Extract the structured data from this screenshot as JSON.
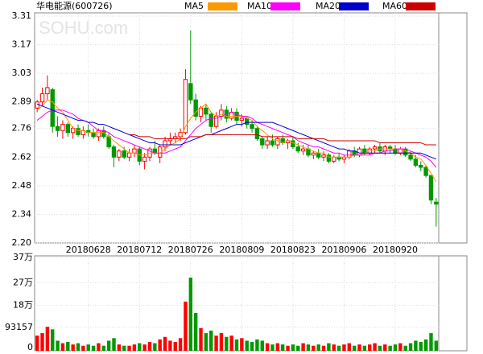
{
  "chart_data": {
    "type": "candlestick",
    "title": "华电能源(600726)",
    "watermark": "SOHU.com",
    "xlim": [
      -0.5,
      78.5
    ],
    "xticks": [
      {
        "value": 10,
        "label": "20180628"
      },
      {
        "value": 20,
        "label": "20180712"
      },
      {
        "value": 30,
        "label": "20180726"
      },
      {
        "value": 40,
        "label": "20180809"
      },
      {
        "value": 50,
        "label": "20180823"
      },
      {
        "value": 60,
        "label": "20180906"
      },
      {
        "value": 70,
        "label": "20180920"
      }
    ],
    "ylim": [
      2.2,
      3.31
    ],
    "yticks": [
      {
        "value": 2.2,
        "label": "2.20"
      },
      2.34,
      2.48,
      2.62,
      2.76,
      2.89,
      3.03,
      3.17,
      3.31
    ],
    "grid": true,
    "up_color": "#ff0000",
    "down_color": "#009900",
    "candles": {
      "open": [
        2.86,
        2.89,
        2.93,
        2.95,
        2.77,
        2.75,
        2.78,
        2.74,
        2.76,
        2.73,
        2.75,
        2.74,
        2.72,
        2.75,
        2.72,
        2.67,
        2.62,
        2.65,
        2.62,
        2.64,
        2.66,
        2.6,
        2.62,
        2.66,
        2.62,
        2.67,
        2.7,
        2.71,
        2.72,
        2.74,
        2.98,
        2.9,
        2.82,
        2.86,
        2.83,
        2.77,
        2.82,
        2.85,
        2.81,
        2.84,
        2.8,
        2.81,
        2.78,
        2.76,
        2.71,
        2.68,
        2.7,
        2.68,
        2.71,
        2.69,
        2.7,
        2.67,
        2.65,
        2.66,
        2.63,
        2.64,
        2.62,
        2.63,
        2.6,
        2.62,
        2.61,
        2.62,
        2.65,
        2.63,
        2.66,
        2.64,
        2.66,
        2.67,
        2.65,
        2.67,
        2.66,
        2.64,
        2.66,
        2.63,
        2.61,
        2.58,
        2.57,
        2.53,
        2.4
      ],
      "high": [
        2.9,
        2.96,
        3.02,
        2.96,
        2.82,
        2.8,
        2.79,
        2.77,
        2.78,
        2.77,
        2.78,
        2.76,
        2.76,
        2.77,
        2.74,
        2.68,
        2.66,
        2.67,
        2.66,
        2.68,
        2.67,
        2.64,
        2.67,
        2.7,
        2.68,
        2.72,
        2.74,
        2.74,
        2.76,
        3.05,
        3.24,
        2.93,
        2.87,
        2.88,
        2.84,
        2.84,
        2.88,
        2.87,
        2.86,
        2.86,
        2.83,
        2.82,
        2.8,
        2.77,
        2.72,
        2.72,
        2.73,
        2.72,
        2.73,
        2.71,
        2.72,
        2.69,
        2.68,
        2.68,
        2.65,
        2.66,
        2.65,
        2.64,
        2.63,
        2.64,
        2.63,
        2.66,
        2.67,
        2.67,
        2.68,
        2.67,
        2.68,
        2.69,
        2.68,
        2.68,
        2.68,
        2.67,
        2.67,
        2.65,
        2.63,
        2.6,
        2.58,
        2.53,
        2.42
      ],
      "low": [
        2.84,
        2.87,
        2.9,
        2.74,
        2.72,
        2.71,
        2.72,
        2.71,
        2.72,
        2.71,
        2.72,
        2.71,
        2.7,
        2.71,
        2.66,
        2.57,
        2.6,
        2.61,
        2.6,
        2.62,
        2.58,
        2.56,
        2.6,
        2.63,
        2.59,
        2.65,
        2.68,
        2.69,
        2.7,
        2.73,
        2.88,
        2.8,
        2.79,
        2.8,
        2.74,
        2.76,
        2.8,
        2.79,
        2.8,
        2.78,
        2.77,
        2.76,
        2.74,
        2.7,
        2.66,
        2.66,
        2.67,
        2.66,
        2.68,
        2.66,
        2.66,
        2.64,
        2.63,
        2.62,
        2.61,
        2.61,
        2.6,
        2.59,
        2.59,
        2.6,
        2.59,
        2.61,
        2.62,
        2.62,
        2.63,
        2.63,
        2.64,
        2.64,
        2.63,
        2.64,
        2.63,
        2.63,
        2.62,
        2.6,
        2.57,
        2.55,
        2.52,
        2.39,
        2.28
      ],
      "close": [
        2.89,
        2.93,
        2.96,
        2.77,
        2.75,
        2.78,
        2.74,
        2.76,
        2.73,
        2.75,
        2.74,
        2.72,
        2.75,
        2.72,
        2.67,
        2.62,
        2.65,
        2.62,
        2.64,
        2.66,
        2.6,
        2.62,
        2.66,
        2.64,
        2.67,
        2.7,
        2.71,
        2.72,
        2.74,
        3.0,
        2.9,
        2.82,
        2.86,
        2.83,
        2.77,
        2.82,
        2.85,
        2.81,
        2.84,
        2.8,
        2.81,
        2.78,
        2.76,
        2.71,
        2.68,
        2.7,
        2.68,
        2.71,
        2.69,
        2.7,
        2.67,
        2.65,
        2.66,
        2.63,
        2.64,
        2.62,
        2.63,
        2.6,
        2.62,
        2.61,
        2.62,
        2.65,
        2.63,
        2.66,
        2.64,
        2.66,
        2.67,
        2.65,
        2.67,
        2.66,
        2.64,
        2.66,
        2.63,
        2.61,
        2.58,
        2.57,
        2.53,
        2.41,
        2.39
      ]
    },
    "volume": {
      "values": [
        60000,
        70000,
        95000,
        85000,
        40000,
        30000,
        35000,
        25000,
        30000,
        20000,
        25000,
        20000,
        30000,
        20000,
        40000,
        50000,
        25000,
        20000,
        20000,
        25000,
        30000,
        25000,
        35000,
        30000,
        45000,
        55000,
        40000,
        35000,
        50000,
        195000,
        290000,
        150000,
        90000,
        70000,
        80000,
        60000,
        70000,
        55000,
        60000,
        45000,
        50000,
        40000,
        35000,
        45000,
        40000,
        30000,
        25000,
        30000,
        25000,
        20000,
        25000,
        20000,
        30000,
        25000,
        20000,
        25000,
        20000,
        30000,
        25000,
        20000,
        25000,
        30000,
        20000,
        25000,
        20000,
        25000,
        30000,
        20000,
        25000,
        20000,
        25000,
        30000,
        20000,
        30000,
        40000,
        35000,
        45000,
        70000,
        40000
      ],
      "ylim": [
        0,
        370000
      ],
      "yticks": [
        0,
        93157,
        {
          "value": 180000,
          "label": "18万"
        },
        {
          "value": 270000,
          "label": "27万"
        },
        {
          "value": 370000,
          "label": "37万"
        }
      ]
    },
    "series": [
      {
        "name": "MA5",
        "color": "#ff9900",
        "values": [
          2.85,
          2.87,
          2.9,
          2.89,
          2.86,
          2.84,
          2.8,
          2.76,
          2.75,
          2.75,
          2.74,
          2.74,
          2.74,
          2.74,
          2.72,
          2.7,
          2.68,
          2.66,
          2.64,
          2.64,
          2.63,
          2.63,
          2.64,
          2.64,
          2.64,
          2.66,
          2.68,
          2.69,
          2.71,
          2.77,
          2.81,
          2.84,
          2.86,
          2.88,
          2.84,
          2.82,
          2.83,
          2.82,
          2.82,
          2.82,
          2.82,
          2.81,
          2.8,
          2.77,
          2.75,
          2.73,
          2.71,
          2.7,
          2.69,
          2.7,
          2.69,
          2.68,
          2.67,
          2.66,
          2.65,
          2.64,
          2.64,
          2.62,
          2.62,
          2.62,
          2.62,
          2.62,
          2.63,
          2.63,
          2.64,
          2.65,
          2.65,
          2.66,
          2.66,
          2.66,
          2.66,
          2.66,
          2.65,
          2.64,
          2.62,
          2.61,
          2.58,
          2.54,
          2.5
        ]
      },
      {
        "name": "MA10",
        "color": "#ff00ff",
        "values": [
          2.8,
          2.82,
          2.84,
          2.85,
          2.85,
          2.85,
          2.84,
          2.83,
          2.81,
          2.8,
          2.79,
          2.77,
          2.75,
          2.75,
          2.74,
          2.72,
          2.71,
          2.7,
          2.69,
          2.68,
          2.67,
          2.66,
          2.65,
          2.64,
          2.64,
          2.64,
          2.65,
          2.66,
          2.67,
          2.7,
          2.73,
          2.76,
          2.78,
          2.8,
          2.81,
          2.81,
          2.82,
          2.83,
          2.84,
          2.83,
          2.82,
          2.82,
          2.81,
          2.79,
          2.78,
          2.77,
          2.76,
          2.75,
          2.74,
          2.73,
          2.72,
          2.7,
          2.69,
          2.68,
          2.67,
          2.67,
          2.66,
          2.65,
          2.64,
          2.64,
          2.63,
          2.63,
          2.63,
          2.63,
          2.63,
          2.63,
          2.64,
          2.64,
          2.65,
          2.65,
          2.66,
          2.66,
          2.66,
          2.65,
          2.64,
          2.63,
          2.62,
          2.6,
          2.57
        ]
      },
      {
        "name": "MA20",
        "color": "#0000cc",
        "values": [
          2.88,
          2.87,
          2.86,
          2.85,
          2.84,
          2.83,
          2.82,
          2.81,
          2.8,
          2.8,
          2.79,
          2.79,
          2.78,
          2.78,
          2.77,
          2.76,
          2.75,
          2.74,
          2.73,
          2.72,
          2.71,
          2.7,
          2.69,
          2.69,
          2.68,
          2.68,
          2.68,
          2.68,
          2.68,
          2.69,
          2.7,
          2.71,
          2.72,
          2.73,
          2.73,
          2.74,
          2.75,
          2.76,
          2.77,
          2.78,
          2.78,
          2.79,
          2.79,
          2.79,
          2.79,
          2.79,
          2.79,
          2.78,
          2.77,
          2.76,
          2.75,
          2.74,
          2.73,
          2.72,
          2.71,
          2.7,
          2.69,
          2.68,
          2.67,
          2.66,
          2.66,
          2.65,
          2.65,
          2.64,
          2.64,
          2.64,
          2.64,
          2.64,
          2.64,
          2.64,
          2.64,
          2.64,
          2.64,
          2.64,
          2.64,
          2.64,
          2.63,
          2.62,
          2.61
        ]
      },
      {
        "name": "MA60",
        "color": "#cc0000",
        "values": [
          null,
          null,
          null,
          null,
          null,
          null,
          null,
          null,
          null,
          null,
          null,
          null,
          null,
          null,
          null,
          null,
          null,
          null,
          2.73,
          2.73,
          2.72,
          2.72,
          2.72,
          2.71,
          2.71,
          2.71,
          2.71,
          2.71,
          2.71,
          2.71,
          2.72,
          2.72,
          2.72,
          2.73,
          2.73,
          2.73,
          2.73,
          2.73,
          2.73,
          2.73,
          2.73,
          2.73,
          2.73,
          2.73,
          2.72,
          2.72,
          2.72,
          2.72,
          2.72,
          2.72,
          2.72,
          2.71,
          2.71,
          2.71,
          2.71,
          2.71,
          2.71,
          2.7,
          2.7,
          2.7,
          2.7,
          2.7,
          2.7,
          2.7,
          2.7,
          2.7,
          2.7,
          2.69,
          2.69,
          2.69,
          2.69,
          2.69,
          2.69,
          2.69,
          2.69,
          2.69,
          2.68,
          2.68,
          2.68
        ]
      }
    ]
  }
}
